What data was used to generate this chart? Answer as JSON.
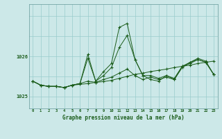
{
  "title": "Graphe pression niveau de la mer (hPa)",
  "background_color": "#cce8e8",
  "grid_color": "#99cccc",
  "line_color": "#1a5c1a",
  "xlim": [
    -0.5,
    23.5
  ],
  "ylim": [
    1024.7,
    1027.3
  ],
  "yticks": [
    1025,
    1026
  ],
  "xtick_labels": [
    "0",
    "1",
    "2",
    "3",
    "4",
    "5",
    "6",
    "7",
    "8",
    "9",
    "10",
    "11",
    "12",
    "13",
    "14",
    "15",
    "16",
    "17",
    "18",
    "19",
    "20",
    "21",
    "22",
    "23"
  ],
  "series1_x": [
    0,
    1,
    2,
    3,
    4,
    5,
    6,
    7,
    8,
    9,
    10,
    11,
    12,
    13,
    14,
    15,
    16,
    17,
    18,
    19,
    20,
    21,
    22,
    23
  ],
  "series1_y": [
    1025.38,
    1025.28,
    1025.25,
    1025.25,
    1025.22,
    1025.28,
    1025.3,
    1025.32,
    1025.35,
    1025.37,
    1025.4,
    1025.45,
    1025.5,
    1025.55,
    1025.58,
    1025.62,
    1025.65,
    1025.68,
    1025.72,
    1025.75,
    1025.78,
    1025.82,
    1025.85,
    1025.88
  ],
  "series2_x": [
    0,
    1,
    2,
    3,
    4,
    5,
    6,
    7,
    8,
    9,
    10,
    11,
    12,
    13,
    14,
    15,
    16,
    17,
    18,
    19,
    20,
    21,
    22,
    23
  ],
  "series2_y": [
    1025.38,
    1025.28,
    1025.25,
    1025.25,
    1025.22,
    1025.28,
    1025.32,
    1025.38,
    1025.35,
    1025.42,
    1025.48,
    1025.58,
    1025.68,
    1025.52,
    1025.42,
    1025.48,
    1025.42,
    1025.48,
    1025.42,
    1025.75,
    1025.82,
    1025.92,
    1025.85,
    1025.55
  ],
  "series3_x": [
    0,
    1,
    2,
    3,
    4,
    5,
    6,
    7,
    8,
    9,
    10,
    11,
    12,
    13,
    14,
    15,
    16,
    17,
    18,
    19,
    20,
    21,
    22,
    23
  ],
  "series3_y": [
    1025.38,
    1025.28,
    1025.25,
    1025.25,
    1025.22,
    1025.28,
    1025.32,
    1026.05,
    1025.38,
    1025.52,
    1025.72,
    1026.22,
    1026.52,
    1025.92,
    1025.52,
    1025.52,
    1025.45,
    1025.52,
    1025.45,
    1025.75,
    1025.85,
    1025.95,
    1025.88,
    1025.55
  ],
  "series4_x": [
    0,
    1,
    2,
    3,
    4,
    5,
    6,
    7,
    8,
    9,
    10,
    11,
    12,
    13,
    14,
    15,
    16,
    17,
    18,
    19,
    20,
    21,
    22,
    23
  ],
  "series4_y": [
    1025.38,
    1025.28,
    1025.25,
    1025.25,
    1025.22,
    1025.28,
    1025.32,
    1025.95,
    1025.38,
    1025.62,
    1025.82,
    1026.72,
    1026.82,
    1025.92,
    1025.52,
    1025.42,
    1025.38,
    1025.52,
    1025.42,
    1025.72,
    1025.85,
    1025.92,
    1025.85,
    1025.55
  ]
}
